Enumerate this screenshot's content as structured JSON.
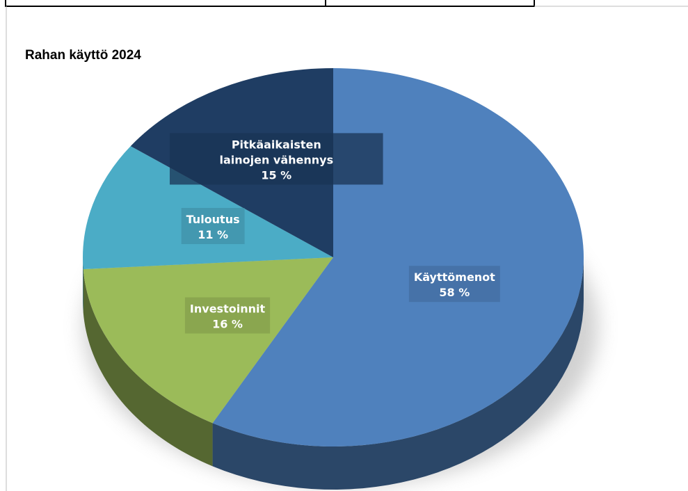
{
  "chart_data": {
    "type": "pie",
    "title": "Rahan käyttö 2024",
    "categories": [
      "Käyttömenot",
      "Investoinnit",
      "Tuloutus",
      "Pitkäaikaisten lainojen vähennys"
    ],
    "values": [
      58,
      16,
      11,
      15
    ],
    "value_labels": [
      "58 %",
      "16 %",
      "11 %",
      "15 %"
    ],
    "colors": [
      "#4f81bd",
      "#9bbb59",
      "#4bacc6",
      "#1f3d63"
    ]
  }
}
